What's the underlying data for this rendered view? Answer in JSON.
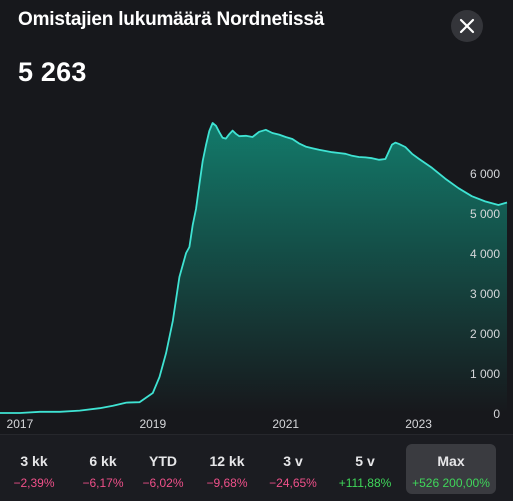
{
  "header": {
    "title": "Omistajien lukumäärä Nordnetissä",
    "value": "5 263"
  },
  "close_icon": "close-icon",
  "colors": {
    "background": "#17181c",
    "line": "#3fe3d3",
    "area_top": "#12806f",
    "negative": "#f0508a",
    "positive": "#3fd65a"
  },
  "chart_data": {
    "type": "area",
    "x_ticks": [
      "2017",
      "2019",
      "2021",
      "2023"
    ],
    "y_ticks": [
      "6 000",
      "5 000",
      "4 000",
      "3 000",
      "2 000",
      "1 000",
      "0"
    ],
    "ylim": [
      0,
      7500
    ],
    "xlim": [
      2016.7,
      2024.33
    ],
    "grid": false,
    "series": [
      {
        "x": [
          2016.7,
          2017.0,
          2017.3,
          2017.6,
          2017.9,
          2018.2,
          2018.4,
          2018.6,
          2018.8,
          2019.0,
          2019.1,
          2019.2,
          2019.3,
          2019.4,
          2019.5,
          2019.55,
          2019.6,
          2019.65,
          2019.7,
          2019.75,
          2019.8,
          2019.85,
          2019.9,
          2019.95,
          2020.0,
          2020.05,
          2020.1,
          2020.15,
          2020.2,
          2020.25,
          2020.3,
          2020.4,
          2020.5,
          2020.6,
          2020.7,
          2020.8,
          2020.9,
          2021.0,
          2021.1,
          2021.2,
          2021.3,
          2021.4,
          2021.5,
          2021.6,
          2021.7,
          2021.8,
          2021.9,
          2022.0,
          2022.1,
          2022.2,
          2022.3,
          2022.4,
          2022.5,
          2022.6,
          2022.65,
          2022.7,
          2022.8,
          2022.9,
          2023.0,
          2023.2,
          2023.4,
          2023.6,
          2023.8,
          2024.0,
          2024.2,
          2024.33
        ],
        "values": [
          0,
          0,
          30,
          30,
          60,
          120,
          180,
          260,
          270,
          500,
          900,
          1500,
          2300,
          3400,
          4000,
          4150,
          4700,
          5100,
          5700,
          6300,
          6700,
          7050,
          7250,
          7180,
          7020,
          6880,
          6860,
          6970,
          7060,
          6980,
          6920,
          6930,
          6900,
          7030,
          7080,
          7000,
          6960,
          6900,
          6850,
          6740,
          6660,
          6620,
          6580,
          6550,
          6520,
          6500,
          6480,
          6430,
          6400,
          6390,
          6370,
          6330,
          6350,
          6710,
          6760,
          6730,
          6650,
          6480,
          6360,
          6130,
          5860,
          5620,
          5420,
          5290,
          5200,
          5263
        ]
      }
    ]
  },
  "periods": [
    {
      "label": "3 kk",
      "change": "−2,39%",
      "trend": "neg",
      "active": false
    },
    {
      "label": "6 kk",
      "change": "−6,17%",
      "trend": "neg",
      "active": false
    },
    {
      "label": "YTD",
      "change": "−6,02%",
      "trend": "neg",
      "active": false
    },
    {
      "label": "12 kk",
      "change": "−9,68%",
      "trend": "neg",
      "active": false
    },
    {
      "label": "3 v",
      "change": "−24,65%",
      "trend": "neg",
      "active": false
    },
    {
      "label": "5 v",
      "change": "+111,88%",
      "trend": "pos",
      "active": false
    },
    {
      "label": "Max",
      "change": "+526 200,00%",
      "trend": "pos",
      "active": true
    }
  ]
}
